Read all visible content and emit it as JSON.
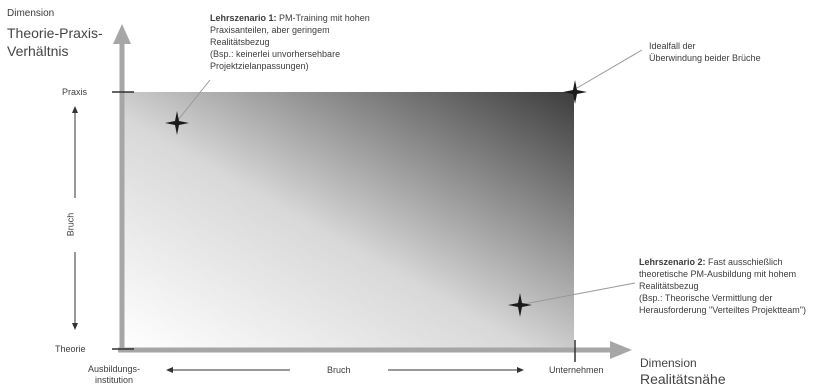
{
  "y_axis": {
    "dimension_label": "Dimension",
    "title_line1": "Theorie-Praxis-",
    "title_line2": "Verhältnis",
    "top_label": "Praxis",
    "bottom_label": "Theorie",
    "middle_label": "Bruch"
  },
  "x_axis": {
    "dimension_label": "Dimension",
    "title": "Realitätsnähe",
    "left_label_line1": "Ausbildungs-",
    "left_label_line2": "institution",
    "right_label": "Unternehmen",
    "middle_label": "Bruch"
  },
  "annotations": {
    "scenario1": {
      "bold": "Lehrszenario 1:",
      "line1_rest": " PM-Training mit hohen",
      "line2": "Praxisanteilen, aber geringem",
      "line3": "Realitätsbezug",
      "line4": "(Bsp.: keinerlei unvorhersehbare",
      "line5": "Projektzielanpassungen)"
    },
    "ideal": {
      "line1": "Idealfall der",
      "line2": "Überwindung beider Brüche"
    },
    "scenario2": {
      "bold": "Lehrszenario 2:",
      "line1_rest": " Fast ausschießlich",
      "line2": "theoretische PM-Ausbildung mit hohem",
      "line3": "Realitätsbezug",
      "line4": "(Bsp.: Theorische Vermittlung der",
      "line5": "Herausforderung \"Verteiltes Projektteam\")"
    }
  },
  "colors": {
    "axis": "#a6a6a6",
    "gradient_light": "#ffffff",
    "gradient_dark": "#3d3d3d",
    "marker": "#1a1a1a"
  }
}
